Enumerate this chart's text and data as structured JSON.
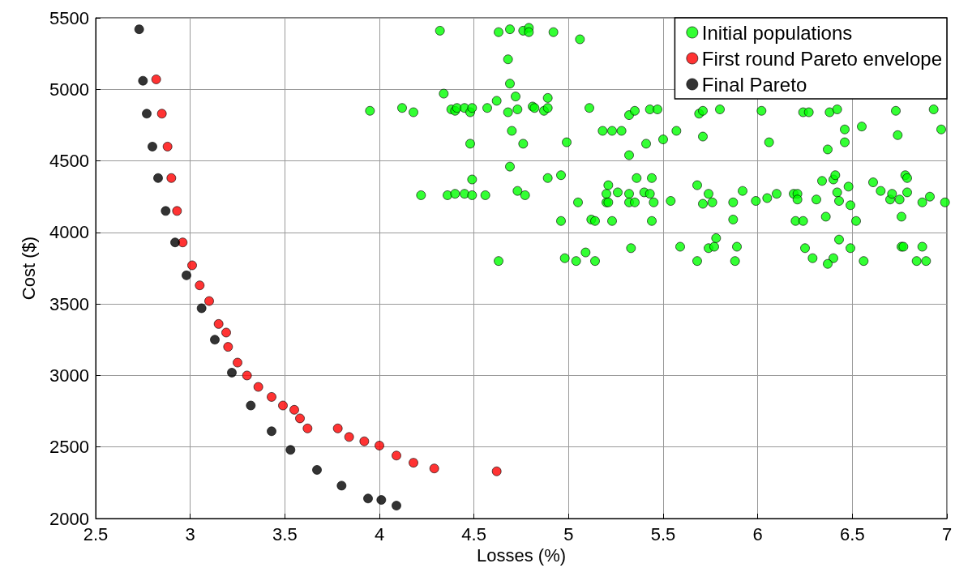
{
  "chart_data": {
    "type": "scatter",
    "xlabel": "Losses (%)",
    "ylabel": "Cost ($)",
    "xlim": [
      2.5,
      7
    ],
    "xticks": [
      2.5,
      3,
      3.5,
      4,
      4.5,
      5,
      5.5,
      6,
      6.5,
      7
    ],
    "ylim": [
      2000,
      5500
    ],
    "yticks": [
      2000,
      2500,
      3000,
      3500,
      4000,
      4500,
      5000,
      5500
    ],
    "grid": true,
    "legend": "top right",
    "marker": "circle",
    "series": [
      {
        "name": "Initial populations",
        "color": "#00ff00",
        "x": [
          4.32,
          4.63,
          4.69,
          4.76,
          4.79,
          4.79,
          4.92,
          5.06,
          4.68,
          4.69,
          4.34,
          4.72,
          4.62,
          4.89,
          3.95,
          4.12,
          4.18,
          4.38,
          4.4,
          4.41,
          4.45,
          4.48,
          4.49,
          4.57,
          4.68,
          4.73,
          4.81,
          4.82,
          4.87,
          4.89,
          5.11,
          4.7,
          4.48,
          4.76,
          4.99,
          4.69,
          4.49,
          4.22,
          4.36,
          4.4,
          4.45,
          4.49,
          4.56,
          4.73,
          4.77,
          4.89,
          4.96,
          5.05,
          4.96,
          4.63,
          5.32,
          5.18,
          5.23,
          5.28,
          5.41,
          5.32,
          5.36,
          5.21,
          5.2,
          5.26,
          5.32,
          5.4,
          5.2,
          5.21,
          5.32,
          5.35,
          5.12,
          5.14,
          5.23,
          5.33,
          4.98,
          5.04,
          5.09,
          5.14,
          5.35,
          5.43,
          5.47,
          5.69,
          5.71,
          5.8,
          6.02,
          6.24,
          6.27,
          6.38,
          6.42,
          6.73,
          6.93,
          5.5,
          5.57,
          5.71,
          6.06,
          6.37,
          6.46,
          6.46,
          6.55,
          6.74,
          6.97,
          5.44,
          5.43,
          5.45,
          5.44,
          5.54,
          5.68,
          5.74,
          5.71,
          5.76,
          5.87,
          5.87,
          5.92,
          5.99,
          6.05,
          6.1,
          6.19,
          6.21,
          6.21,
          6.2,
          6.24,
          6.31,
          6.34,
          6.4,
          6.41,
          6.42,
          6.43,
          6.36,
          6.48,
          6.49,
          6.52,
          6.61,
          6.65,
          6.7,
          6.71,
          6.75,
          6.78,
          6.79,
          6.79,
          6.76,
          6.87,
          6.91,
          6.99,
          5.59,
          5.68,
          5.74,
          5.77,
          5.78,
          5.89,
          5.88,
          6.25,
          6.29,
          6.4,
          6.37,
          6.43,
          6.49,
          6.56,
          6.76,
          6.77,
          6.87,
          6.84,
          6.89
        ],
        "values": [
          5410,
          5400,
          5420,
          5410,
          5430,
          5400,
          5400,
          5350,
          5210,
          5040,
          4970,
          4950,
          4920,
          4940,
          4850,
          4870,
          4840,
          4860,
          4850,
          4870,
          4870,
          4840,
          4870,
          4870,
          4840,
          4860,
          4880,
          4870,
          4850,
          4870,
          4870,
          4710,
          4620,
          4620,
          4630,
          4460,
          4370,
          4260,
          4260,
          4270,
          4270,
          4260,
          4260,
          4290,
          4260,
          4380,
          4400,
          4210,
          4080,
          3800,
          4820,
          4710,
          4710,
          4710,
          4620,
          4540,
          4380,
          4330,
          4270,
          4280,
          4270,
          4280,
          4210,
          4210,
          4210,
          4210,
          4090,
          4080,
          4080,
          3890,
          3820,
          3800,
          3860,
          3800,
          4850,
          4860,
          4860,
          4830,
          4850,
          4860,
          4850,
          4840,
          4840,
          4840,
          4860,
          4850,
          4860,
          4650,
          4710,
          4670,
          4630,
          4580,
          4720,
          4630,
          4740,
          4680,
          4720,
          4380,
          4270,
          4210,
          4080,
          4220,
          4330,
          4270,
          4200,
          4210,
          4210,
          4090,
          4290,
          4220,
          4240,
          4270,
          4270,
          4270,
          4230,
          4080,
          4080,
          4230,
          4360,
          4370,
          4400,
          4280,
          4220,
          4110,
          4320,
          4190,
          4080,
          4350,
          4290,
          4230,
          4270,
          4230,
          4400,
          4380,
          4280,
          4110,
          4210,
          4250,
          4210,
          3900,
          3800,
          3890,
          3900,
          3960,
          3900,
          3800,
          3890,
          3820,
          3820,
          3780,
          3950,
          3890,
          3800,
          3900,
          3900,
          3900,
          3800,
          3800
        ]
      },
      {
        "name": "First round Pareto envelope",
        "color": "#ff0000",
        "x": [
          2.82,
          2.85,
          2.88,
          2.9,
          2.93,
          2.96,
          3.01,
          3.05,
          3.1,
          3.15,
          3.19,
          3.2,
          3.25,
          3.3,
          3.36,
          3.43,
          3.49,
          3.55,
          3.58,
          3.62,
          3.78,
          3.84,
          3.92,
          4.0,
          4.09,
          4.18,
          4.29,
          4.62
        ],
        "values": [
          5070,
          4830,
          4600,
          4380,
          4150,
          3930,
          3770,
          3630,
          3520,
          3360,
          3300,
          3200,
          3090,
          3000,
          2920,
          2850,
          2790,
          2760,
          2700,
          2630,
          2630,
          2570,
          2540,
          2510,
          2440,
          2390,
          2350,
          2330
        ]
      },
      {
        "name": "Final Pareto",
        "color": "#000000",
        "x": [
          2.73,
          2.75,
          2.77,
          2.8,
          2.83,
          2.87,
          2.92,
          2.98,
          3.06,
          3.13,
          3.22,
          3.32,
          3.43,
          3.53,
          3.67,
          3.8,
          3.94,
          4.01,
          4.09
        ],
        "values": [
          5420,
          5060,
          4830,
          4600,
          4380,
          4150,
          3930,
          3700,
          3470,
          3250,
          3020,
          2790,
          2610,
          2480,
          2340,
          2230,
          2140,
          2130,
          2090
        ]
      }
    ]
  }
}
